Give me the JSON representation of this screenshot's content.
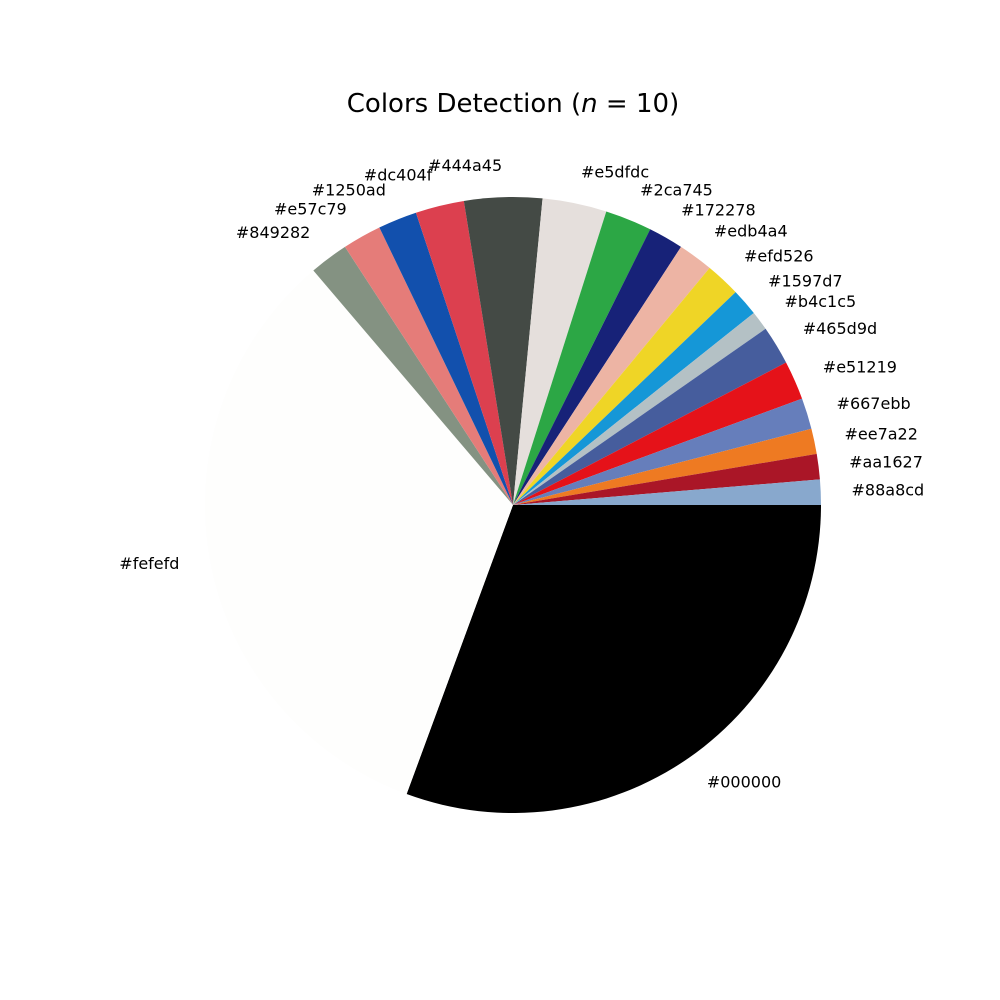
{
  "chart_data": {
    "type": "pie",
    "title": {
      "prefix": "Colors Detection (",
      "variable": "n",
      "equals": " = ",
      "value": "10",
      "suffix": ")"
    },
    "slices": [
      {
        "label": "#000000",
        "color": "#000000",
        "value": 30.0
      },
      {
        "label": "#fefefd",
        "color": "#fefefd",
        "value": 32.5
      },
      {
        "label": "#849282",
        "color": "#849282",
        "value": 2.0
      },
      {
        "label": "#e57c79",
        "color": "#e57c79",
        "value": 2.0
      },
      {
        "label": "#1250ad",
        "color": "#1250ad",
        "value": 2.0
      },
      {
        "label": "#dc404f",
        "color": "#dc404f",
        "value": 2.5
      },
      {
        "label": "#444a45",
        "color": "#444a45",
        "value": 4.0
      },
      {
        "label": "#e5dfdc",
        "color": "#e5dfdc",
        "value": 3.3
      },
      {
        "label": "#2ca745",
        "color": "#2ca745",
        "value": 2.4
      },
      {
        "label": "#172278",
        "color": "#172278",
        "value": 1.8
      },
      {
        "label": "#edb4a4",
        "color": "#edb4a4",
        "value": 1.8
      },
      {
        "label": "#efd526",
        "color": "#efd526",
        "value": 1.8
      },
      {
        "label": "#1597d7",
        "color": "#1597d7",
        "value": 1.4
      },
      {
        "label": "#b4c1c5",
        "color": "#b4c1c5",
        "value": 1.0
      },
      {
        "label": "#465d9d",
        "color": "#465d9d",
        "value": 2.0
      },
      {
        "label": "#e51219",
        "color": "#e51219",
        "value": 2.0
      },
      {
        "label": "#667ebb",
        "color": "#667ebb",
        "value": 1.6
      },
      {
        "label": "#ee7a22",
        "color": "#ee7a22",
        "value": 1.3
      },
      {
        "label": "#aa1627",
        "color": "#aa1627",
        "value": 1.3
      },
      {
        "label": "#88a8cd",
        "color": "#88a8cd",
        "value": 1.3
      }
    ],
    "start_angle_deg": 0,
    "direction": "clockwise",
    "legend": "none"
  }
}
